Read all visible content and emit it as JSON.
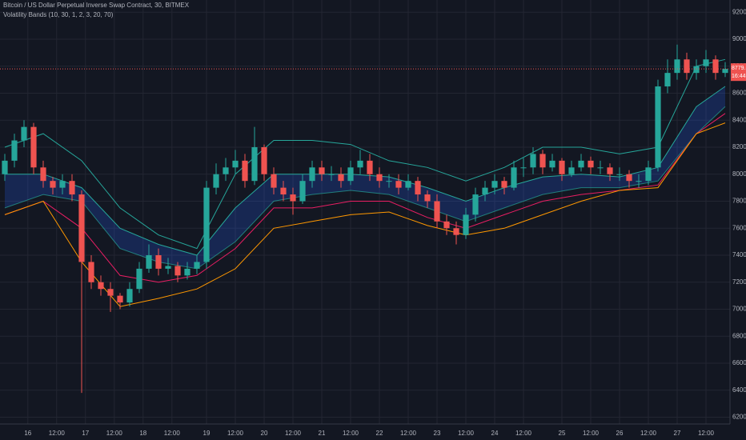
{
  "chart_data": {
    "type": "candlestick",
    "title": "Bitcoin / US Dollar Perpetual Inverse Swap Contract, 30, BITMEX",
    "subtitle": "Volatility Bands (10, 30, 1, 2, 3, 20, 70)",
    "up_color": "#26a69a",
    "down_color": "#ef5350",
    "grid": true,
    "x": [
      0,
      1,
      2,
      3,
      4,
      5,
      6,
      7,
      8,
      9,
      10,
      11,
      12,
      13,
      14,
      15,
      16,
      17,
      18,
      19,
      20,
      21,
      22,
      23,
      24,
      25,
      26,
      27,
      28,
      29,
      30,
      31,
      32,
      33,
      34,
      35,
      36,
      37,
      38,
      39,
      40,
      41,
      42,
      43,
      44,
      45,
      46,
      47,
      48,
      49,
      50,
      51,
      52,
      53,
      54,
      55,
      56,
      57,
      58,
      59,
      60,
      61,
      62,
      63,
      64,
      65,
      66,
      67,
      68,
      69,
      70,
      71,
      72,
      73,
      74,
      75
    ],
    "open": [
      8000,
      8100,
      8250,
      8350,
      8050,
      7950,
      7900,
      7950,
      7850,
      7350,
      7200,
      7150,
      7100,
      7050,
      7150,
      7300,
      7400,
      7300,
      7320,
      7250,
      7300,
      7350,
      7900,
      8000,
      8050,
      8100,
      7950,
      8200,
      8000,
      7900,
      7850,
      7800,
      7950,
      8050,
      8000,
      8000,
      7950,
      8050,
      8100,
      8000,
      7950,
      7950,
      7900,
      7950,
      7850,
      7800,
      7650,
      7600,
      7550,
      7700,
      7850,
      7900,
      7950,
      7900,
      8050,
      8050,
      8150,
      8050,
      8100,
      8000,
      8050,
      8100,
      8050,
      8050,
      8000,
      8000,
      7950,
      7950,
      8050,
      8650,
      8750,
      8850,
      8750,
      8800,
      8850,
      8750
    ],
    "high": [
      8150,
      8300,
      8400,
      8380,
      8100,
      7980,
      8000,
      8000,
      7880,
      7400,
      7250,
      7200,
      7120,
      7200,
      7350,
      7480,
      7450,
      7380,
      7350,
      7350,
      7400,
      7950,
      8080,
      8120,
      8180,
      8150,
      8350,
      8220,
      8050,
      7950,
      7900,
      8000,
      8100,
      8100,
      8060,
      8050,
      8100,
      8180,
      8150,
      8050,
      8000,
      8000,
      8000,
      7980,
      7880,
      7850,
      7700,
      7650,
      7750,
      7900,
      7950,
      8000,
      7980,
      8100,
      8120,
      8200,
      8180,
      8150,
      8120,
      8100,
      8150,
      8130,
      8100,
      8080,
      8050,
      8030,
      8000,
      8100,
      8700,
      8850,
      8960,
      8900,
      8850,
      8920,
      8880,
      8830
    ],
    "low": [
      7950,
      8050,
      8200,
      8000,
      7900,
      7850,
      7850,
      7800,
      6380,
      7150,
      7100,
      6980,
      7000,
      7020,
      7120,
      7270,
      7250,
      7260,
      7200,
      7220,
      7260,
      7300,
      7850,
      7950,
      8000,
      7900,
      7920,
      7950,
      7850,
      7800,
      7700,
      7780,
      7900,
      7950,
      7950,
      7900,
      7920,
      8000,
      7950,
      7900,
      7900,
      7850,
      7880,
      7800,
      7750,
      7600,
      7550,
      7480,
      7520,
      7650,
      7800,
      7850,
      7850,
      7880,
      7980,
      8000,
      8000,
      8020,
      7950,
      7980,
      8020,
      8000,
      8000,
      7950,
      7950,
      7900,
      7900,
      7920,
      8020,
      8600,
      8700,
      8700,
      8700,
      8750,
      8700,
      8720
    ],
    "close": [
      8100,
      8250,
      8350,
      8050,
      7950,
      7900,
      7950,
      7850,
      7350,
      7200,
      7150,
      7100,
      7050,
      7150,
      7300,
      7400,
      7300,
      7320,
      7250,
      7300,
      7350,
      7900,
      8000,
      8050,
      8100,
      7950,
      8200,
      8000,
      7900,
      7850,
      7800,
      7950,
      8050,
      8000,
      8000,
      7950,
      8050,
      8100,
      8000,
      7950,
      7950,
      7900,
      7950,
      7850,
      7800,
      7650,
      7600,
      7550,
      7700,
      7850,
      7900,
      7950,
      7900,
      8050,
      8050,
      8150,
      8050,
      8100,
      8000,
      8050,
      8100,
      8050,
      8050,
      8000,
      8000,
      7950,
      7950,
      8050,
      8650,
      8750,
      8850,
      8750,
      8800,
      8850,
      8750,
      8780
    ],
    "band_fill": {
      "color": "#2962ff",
      "line_color": "#26a69a",
      "x": [
        0,
        4,
        8,
        12,
        16,
        20,
        24,
        28,
        32,
        36,
        40,
        44,
        48,
        52,
        56,
        60,
        64,
        68,
        72,
        75
      ],
      "upper": [
        8000,
        8000,
        7900,
        7600,
        7480,
        7400,
        7750,
        8000,
        8000,
        8000,
        7980,
        7900,
        7800,
        7900,
        7980,
        8000,
        7980,
        8050,
        8500,
        8650
      ],
      "lower": [
        7750,
        7850,
        7800,
        7450,
        7350,
        7300,
        7500,
        7800,
        7850,
        7880,
        7850,
        7750,
        7650,
        7750,
        7850,
        7900,
        7900,
        7950,
        8300,
        8500
      ]
    },
    "lines": [
      {
        "color": "#26a69a",
        "x": [
          0,
          4,
          8,
          12,
          16,
          20,
          24,
          28,
          32,
          36,
          40,
          44,
          48,
          52,
          56,
          60,
          64,
          68,
          72,
          75
        ],
        "values": [
          8200,
          8300,
          8100,
          7750,
          7550,
          7450,
          8000,
          8250,
          8250,
          8220,
          8100,
          8050,
          7950,
          8050,
          8200,
          8200,
          8150,
          8200,
          8800,
          8850
        ]
      },
      {
        "color": "#e91e63",
        "x": [
          0,
          4,
          8,
          12,
          16,
          20,
          24,
          28,
          32,
          36,
          40,
          44,
          48,
          52,
          56,
          60,
          64,
          68,
          72,
          75
        ],
        "values": [
          7700,
          7800,
          7600,
          7250,
          7200,
          7250,
          7450,
          7750,
          7750,
          7800,
          7800,
          7680,
          7600,
          7700,
          7800,
          7850,
          7880,
          7920,
          8300,
          8450
        ]
      },
      {
        "color": "#ff9800",
        "x": [
          0,
          4,
          8,
          12,
          16,
          20,
          24,
          28,
          32,
          36,
          40,
          44,
          48,
          52,
          56,
          60,
          64,
          68,
          72,
          75
        ],
        "values": [
          7700,
          7800,
          7350,
          7020,
          7080,
          7150,
          7300,
          7600,
          7650,
          7700,
          7720,
          7620,
          7550,
          7600,
          7700,
          7800,
          7880,
          7900,
          8300,
          8380
        ]
      }
    ],
    "last_price": {
      "value": 8779.5,
      "label": "8779.5"
    },
    "countdown": "16:44",
    "xlim": [
      -0.5,
      75.5
    ],
    "xticks": [
      {
        "value": 2.4,
        "label": "16"
      },
      {
        "value": 5.4,
        "label": "12:00"
      },
      {
        "value": 8.4,
        "label": "17"
      },
      {
        "value": 11.4,
        "label": "12:00"
      },
      {
        "value": 14.4,
        "label": "18"
      },
      {
        "value": 17.4,
        "label": "12:00"
      },
      {
        "value": 21,
        "label": "19"
      },
      {
        "value": 24,
        "label": "12:00"
      },
      {
        "value": 27,
        "label": "20"
      },
      {
        "value": 30,
        "label": "12:00"
      },
      {
        "value": 33,
        "label": "21"
      },
      {
        "value": 36,
        "label": "12:00"
      },
      {
        "value": 39,
        "label": "22"
      },
      {
        "value": 42,
        "label": "12:00"
      },
      {
        "value": 45,
        "label": "23"
      },
      {
        "value": 48,
        "label": "12:00"
      },
      {
        "value": 51,
        "label": "24"
      },
      {
        "value": 54,
        "label": "12:00"
      },
      {
        "value": 58,
        "label": "25"
      },
      {
        "value": 61,
        "label": "12:00"
      },
      {
        "value": 64,
        "label": "26"
      },
      {
        "value": 67,
        "label": "12:00"
      },
      {
        "value": 70,
        "label": "27"
      },
      {
        "value": 73,
        "label": "12:00"
      }
    ],
    "ylim": [
      6150,
      9290
    ],
    "yticks": [
      {
        "value": 6200,
        "label": "6200.0"
      },
      {
        "value": 6400,
        "label": "6400.0"
      },
      {
        "value": 6600,
        "label": "6600.0"
      },
      {
        "value": 6800,
        "label": "6800.0"
      },
      {
        "value": 7000,
        "label": "7000.0"
      },
      {
        "value": 7200,
        "label": "7200.0"
      },
      {
        "value": 7400,
        "label": "7400.0"
      },
      {
        "value": 7600,
        "label": "7600.0"
      },
      {
        "value": 7800,
        "label": "7800.0"
      },
      {
        "value": 8000,
        "label": "8000.0"
      },
      {
        "value": 8200,
        "label": "8200.0"
      },
      {
        "value": 8400,
        "label": "8400.0"
      },
      {
        "value": 8600,
        "label": "8600.0"
      },
      {
        "value": 8800,
        "label": "8800.0"
      },
      {
        "value": 9000,
        "label": "9000.0"
      },
      {
        "value": 9200,
        "label": "9200.0"
      }
    ]
  }
}
